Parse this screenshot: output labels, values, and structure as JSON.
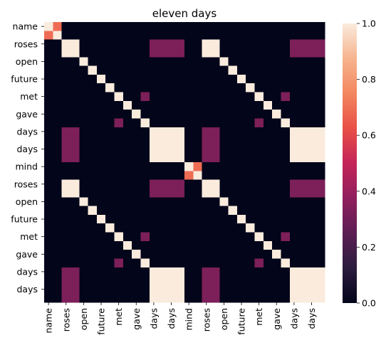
{
  "chart_data": {
    "type": "heatmap",
    "title": "eleven days",
    "xlabel": "",
    "ylabel": "",
    "row_labels": [
      "name",
      "",
      "roses",
      "",
      "open",
      "",
      "future",
      "",
      "met",
      "",
      "gave",
      "",
      "days",
      "",
      "days",
      "",
      "mind",
      "",
      "roses",
      "",
      "open",
      "",
      "future",
      "",
      "met",
      "",
      "gave",
      "",
      "days",
      "",
      "days",
      ""
    ],
    "col_labels": [
      "name",
      "",
      "roses",
      "",
      "open",
      "",
      "future",
      "",
      "met",
      "",
      "gave",
      "",
      "days",
      "",
      "days",
      "",
      "mind",
      "",
      "roses",
      "",
      "open",
      "",
      "future",
      "",
      "met",
      "",
      "gave",
      "",
      "days",
      "",
      "days",
      ""
    ],
    "tick_labels_y": [
      "name",
      "roses",
      "open",
      "future",
      "met",
      "gave",
      "days",
      "days",
      "mind",
      "roses",
      "open",
      "future",
      "met",
      "gave",
      "days",
      "days"
    ],
    "tick_labels_x": [
      "name",
      "roses",
      "open",
      "future",
      "met",
      "gave",
      "days",
      "days",
      "mind",
      "roses",
      "open",
      "future",
      "met",
      "gave",
      "days",
      "days"
    ],
    "values": [
      [
        1,
        0.69,
        0,
        0,
        0,
        0,
        0,
        0,
        0,
        0,
        0,
        0,
        0,
        0,
        0,
        0,
        0,
        0,
        0,
        0,
        0,
        0,
        0,
        0,
        0,
        0,
        0,
        0,
        0,
        0,
        0,
        0
      ],
      [
        0.69,
        1,
        0,
        0,
        0,
        0,
        0,
        0,
        0,
        0,
        0,
        0,
        0,
        0,
        0,
        0,
        0,
        0,
        0,
        0,
        0,
        0,
        0,
        0,
        0,
        0,
        0,
        0,
        0,
        0,
        0,
        0
      ],
      [
        0,
        0,
        1,
        1,
        0,
        0,
        0,
        0,
        0,
        0,
        0,
        0,
        0.33,
        0.33,
        0.33,
        0.33,
        0,
        0,
        1,
        1,
        0,
        0,
        0,
        0,
        0,
        0,
        0,
        0,
        0.33,
        0.33,
        0.33,
        0.33
      ],
      [
        0,
        0,
        1,
        1,
        0,
        0,
        0,
        0,
        0,
        0,
        0,
        0,
        0.33,
        0.33,
        0.33,
        0.33,
        0,
        0,
        1,
        1,
        0,
        0,
        0,
        0,
        0,
        0,
        0,
        0,
        0.33,
        0.33,
        0.33,
        0.33
      ],
      [
        0,
        0,
        0,
        0,
        1,
        0,
        0,
        0,
        0,
        0,
        0,
        0,
        0,
        0,
        0,
        0,
        0,
        0,
        0,
        0,
        1,
        0,
        0,
        0,
        0,
        0,
        0,
        0,
        0,
        0,
        0,
        0
      ],
      [
        0,
        0,
        0,
        0,
        0,
        1,
        0,
        0,
        0,
        0,
        0,
        0,
        0,
        0,
        0,
        0,
        0,
        0,
        0,
        0,
        0,
        1,
        0,
        0,
        0,
        0,
        0,
        0,
        0,
        0,
        0,
        0
      ],
      [
        0,
        0,
        0,
        0,
        0,
        0,
        1,
        0,
        0,
        0,
        0,
        0,
        0,
        0,
        0,
        0,
        0,
        0,
        0,
        0,
        0,
        0,
        1,
        0,
        0,
        0,
        0,
        0,
        0,
        0,
        0,
        0
      ],
      [
        0,
        0,
        0,
        0,
        0,
        0,
        0,
        1,
        0,
        0,
        0,
        0,
        0,
        0,
        0,
        0,
        0,
        0,
        0,
        0,
        0,
        0,
        0,
        1,
        0,
        0,
        0,
        0,
        0,
        0,
        0,
        0
      ],
      [
        0,
        0,
        0,
        0,
        0,
        0,
        0,
        0,
        1,
        0,
        0,
        0.33,
        0,
        0,
        0,
        0,
        0,
        0,
        0,
        0,
        0,
        0,
        0,
        0,
        1,
        0,
        0,
        0.33,
        0,
        0,
        0,
        0
      ],
      [
        0,
        0,
        0,
        0,
        0,
        0,
        0,
        0,
        0,
        1,
        0,
        0,
        0,
        0,
        0,
        0,
        0,
        0,
        0,
        0,
        0,
        0,
        0,
        0,
        0,
        1,
        0,
        0,
        0,
        0,
        0,
        0
      ],
      [
        0,
        0,
        0,
        0,
        0,
        0,
        0,
        0,
        0,
        0,
        1,
        0,
        0,
        0,
        0,
        0,
        0,
        0,
        0,
        0,
        0,
        0,
        0,
        0,
        0,
        0,
        1,
        0,
        0,
        0,
        0,
        0
      ],
      [
        0,
        0,
        0,
        0,
        0,
        0,
        0,
        0,
        0.33,
        0,
        0,
        1,
        0,
        0,
        0,
        0,
        0,
        0,
        0,
        0,
        0,
        0,
        0,
        0,
        0.33,
        0,
        0,
        1,
        0,
        0,
        0,
        0
      ],
      [
        0,
        0,
        0.33,
        0.33,
        0,
        0,
        0,
        0,
        0,
        0,
        0,
        0,
        1,
        1,
        1,
        1,
        0,
        0,
        0.33,
        0.33,
        0,
        0,
        0,
        0,
        0,
        0,
        0,
        0,
        1,
        1,
        1,
        1
      ],
      [
        0,
        0,
        0.33,
        0.33,
        0,
        0,
        0,
        0,
        0,
        0,
        0,
        0,
        1,
        1,
        1,
        1,
        0,
        0,
        0.33,
        0.33,
        0,
        0,
        0,
        0,
        0,
        0,
        0,
        0,
        1,
        1,
        1,
        1
      ],
      [
        0,
        0,
        0.33,
        0.33,
        0,
        0,
        0,
        0,
        0,
        0,
        0,
        0,
        1,
        1,
        1,
        1,
        0,
        0,
        0.33,
        0.33,
        0,
        0,
        0,
        0,
        0,
        0,
        0,
        0,
        1,
        1,
        1,
        1
      ],
      [
        0,
        0,
        0.33,
        0.33,
        0,
        0,
        0,
        0,
        0,
        0,
        0,
        0,
        1,
        1,
        1,
        1,
        0,
        0,
        0.33,
        0.33,
        0,
        0,
        0,
        0,
        0,
        0,
        0,
        0,
        1,
        1,
        1,
        1
      ],
      [
        0,
        0,
        0,
        0,
        0,
        0,
        0,
        0,
        0,
        0,
        0,
        0,
        0,
        0,
        0,
        0,
        1,
        0.69,
        0,
        0,
        0,
        0,
        0,
        0,
        0,
        0,
        0,
        0,
        0,
        0,
        0,
        0
      ],
      [
        0,
        0,
        0,
        0,
        0,
        0,
        0,
        0,
        0,
        0,
        0,
        0,
        0,
        0,
        0,
        0,
        0.69,
        1,
        0,
        0,
        0,
        0,
        0,
        0,
        0,
        0,
        0,
        0,
        0,
        0,
        0,
        0
      ],
      [
        0,
        0,
        1,
        1,
        0,
        0,
        0,
        0,
        0,
        0,
        0,
        0,
        0.33,
        0.33,
        0.33,
        0.33,
        0,
        0,
        1,
        1,
        0,
        0,
        0,
        0,
        0,
        0,
        0,
        0,
        0.33,
        0.33,
        0.33,
        0.33
      ],
      [
        0,
        0,
        1,
        1,
        0,
        0,
        0,
        0,
        0,
        0,
        0,
        0,
        0.33,
        0.33,
        0.33,
        0.33,
        0,
        0,
        1,
        1,
        0,
        0,
        0,
        0,
        0,
        0,
        0,
        0,
        0.33,
        0.33,
        0.33,
        0.33
      ],
      [
        0,
        0,
        0,
        0,
        1,
        0,
        0,
        0,
        0,
        0,
        0,
        0,
        0,
        0,
        0,
        0,
        0,
        0,
        0,
        0,
        1,
        0,
        0,
        0,
        0,
        0,
        0,
        0,
        0,
        0,
        0,
        0
      ],
      [
        0,
        0,
        0,
        0,
        0,
        1,
        0,
        0,
        0,
        0,
        0,
        0,
        0,
        0,
        0,
        0,
        0,
        0,
        0,
        0,
        0,
        1,
        0,
        0,
        0,
        0,
        0,
        0,
        0,
        0,
        0,
        0
      ],
      [
        0,
        0,
        0,
        0,
        0,
        0,
        1,
        0,
        0,
        0,
        0,
        0,
        0,
        0,
        0,
        0,
        0,
        0,
        0,
        0,
        0,
        0,
        1,
        0,
        0,
        0,
        0,
        0,
        0,
        0,
        0,
        0
      ],
      [
        0,
        0,
        0,
        0,
        0,
        0,
        0,
        1,
        0,
        0,
        0,
        0,
        0,
        0,
        0,
        0,
        0,
        0,
        0,
        0,
        0,
        0,
        0,
        1,
        0,
        0,
        0,
        0,
        0,
        0,
        0,
        0
      ],
      [
        0,
        0,
        0,
        0,
        0,
        0,
        0,
        0,
        1,
        0,
        0,
        0.33,
        0,
        0,
        0,
        0,
        0,
        0,
        0,
        0,
        0,
        0,
        0,
        0,
        1,
        0,
        0,
        0.33,
        0,
        0,
        0,
        0
      ],
      [
        0,
        0,
        0,
        0,
        0,
        0,
        0,
        0,
        0,
        1,
        0,
        0,
        0,
        0,
        0,
        0,
        0,
        0,
        0,
        0,
        0,
        0,
        0,
        0,
        0,
        1,
        0,
        0,
        0,
        0,
        0,
        0
      ],
      [
        0,
        0,
        0,
        0,
        0,
        0,
        0,
        0,
        0,
        0,
        1,
        0,
        0,
        0,
        0,
        0,
        0,
        0,
        0,
        0,
        0,
        0,
        0,
        0,
        0,
        0,
        1,
        0,
        0,
        0,
        0,
        0
      ],
      [
        0,
        0,
        0,
        0,
        0,
        0,
        0,
        0,
        0.33,
        0,
        0,
        1,
        0,
        0,
        0,
        0,
        0,
        0,
        0,
        0,
        0,
        0,
        0,
        0,
        0.33,
        0,
        0,
        1,
        0,
        0,
        0,
        0
      ],
      [
        0,
        0,
        0.33,
        0.33,
        0,
        0,
        0,
        0,
        0,
        0,
        0,
        0,
        1,
        1,
        1,
        1,
        0,
        0,
        0.33,
        0.33,
        0,
        0,
        0,
        0,
        0,
        0,
        0,
        0,
        1,
        1,
        1,
        1
      ],
      [
        0,
        0,
        0.33,
        0.33,
        0,
        0,
        0,
        0,
        0,
        0,
        0,
        0,
        1,
        1,
        1,
        1,
        0,
        0,
        0.33,
        0.33,
        0,
        0,
        0,
        0,
        0,
        0,
        0,
        0,
        1,
        1,
        1,
        1
      ],
      [
        0,
        0,
        0.33,
        0.33,
        0,
        0,
        0,
        0,
        0,
        0,
        0,
        0,
        1,
        1,
        1,
        1,
        0,
        0,
        0.33,
        0.33,
        0,
        0,
        0,
        0,
        0,
        0,
        0,
        0,
        1,
        1,
        1,
        1
      ],
      [
        0,
        0,
        0.33,
        0.33,
        0,
        0,
        0,
        0,
        0,
        0,
        0,
        0,
        1,
        1,
        1,
        1,
        0,
        0,
        0.33,
        0.33,
        0,
        0,
        0,
        0,
        0,
        0,
        0,
        0,
        1,
        1,
        1,
        1
      ]
    ],
    "colorbar": {
      "range": [
        0.0,
        1.0
      ],
      "tick_values": [
        0.0,
        0.2,
        0.4,
        0.6,
        0.8,
        1.0
      ],
      "tick_labels": [
        "0.0",
        "0.2",
        "0.4",
        "0.6",
        "0.8",
        "1.0"
      ],
      "colormap": "rocket",
      "stops": [
        "#03051a",
        "#2b1c3e",
        "#5c1e53",
        "#8f1f5d",
        "#c4245a",
        "#e84f46",
        "#f3875f",
        "#f6b48e",
        "#faebdd"
      ]
    },
    "grid": false,
    "legend": "colorbar-right"
  }
}
